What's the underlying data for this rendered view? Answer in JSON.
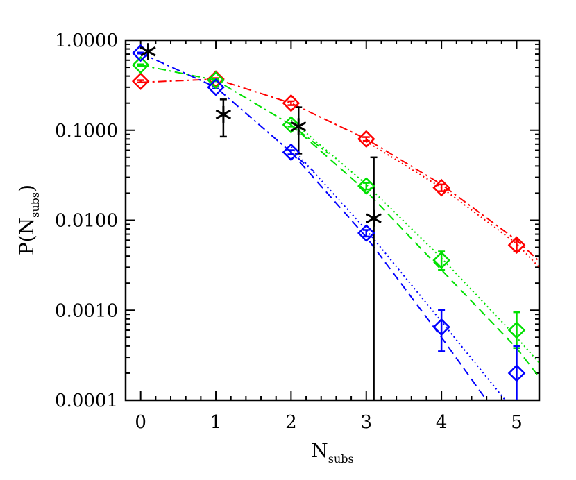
{
  "chart_data": {
    "type": "scatter",
    "title": "",
    "xlabel": {
      "main": "N",
      "sub": "subs"
    },
    "ylabel": {
      "pre": "P(N",
      "sub": "subs",
      "post": ")"
    },
    "xlim": [
      -0.2,
      5.3
    ],
    "ylim": [
      0.0001,
      1.0
    ],
    "yscale": "log",
    "xticks": [
      "0",
      "1",
      "2",
      "3",
      "4",
      "5"
    ],
    "yticks": [
      "0.0001",
      "0.0010",
      "0.0100",
      "0.1000",
      "1.0000"
    ],
    "grid": false,
    "series": [
      {
        "color": "#ff0000",
        "marker": "diamond",
        "x": [
          0,
          1,
          2,
          3,
          4,
          5
        ],
        "y": [
          0.35,
          0.37,
          0.2,
          0.08,
          0.023,
          0.0053
        ],
        "yerr_low": [
          0.34,
          0.36,
          0.19,
          0.076,
          0.021,
          0.0045
        ],
        "yerr_high": [
          0.36,
          0.38,
          0.21,
          0.084,
          0.025,
          0.0061
        ],
        "fit_dashdot": [
          [
            0,
            0.34
          ],
          [
            1,
            0.37
          ],
          [
            2,
            0.2
          ],
          [
            3,
            0.08
          ],
          [
            4,
            0.025
          ],
          [
            5,
            0.006
          ],
          [
            5.3,
            0.0035
          ]
        ],
        "fit_dotted": [
          [
            3,
            0.075
          ],
          [
            4,
            0.023
          ],
          [
            5,
            0.0055
          ],
          [
            5.3,
            0.003
          ]
        ]
      },
      {
        "color": "#00e000",
        "marker": "diamond",
        "x": [
          0,
          1,
          2,
          3,
          4,
          5
        ],
        "y": [
          0.53,
          0.36,
          0.115,
          0.024,
          0.0036,
          0.0006
        ],
        "yerr_low": [
          0.52,
          0.35,
          0.11,
          0.022,
          0.0028,
          0.00038
        ],
        "yerr_high": [
          0.54,
          0.37,
          0.12,
          0.026,
          0.0045,
          0.00095
        ],
        "fit_dashdot": [
          [
            0,
            0.53
          ],
          [
            1,
            0.36
          ],
          [
            2,
            0.115
          ],
          [
            2.5,
            0.055
          ]
        ],
        "fit_dotted": [
          [
            2,
            0.13
          ],
          [
            3,
            0.025
          ],
          [
            4,
            0.0038
          ],
          [
            5,
            0.0005
          ],
          [
            5.3,
            0.00026
          ]
        ],
        "fit_dashed": [
          [
            2,
            0.115
          ],
          [
            3,
            0.021
          ],
          [
            4,
            0.0028
          ],
          [
            5,
            0.00038
          ],
          [
            5.3,
            0.00018
          ]
        ]
      },
      {
        "color": "#0000ff",
        "marker": "diamond",
        "x": [
          0,
          1,
          2,
          3,
          4,
          5
        ],
        "y": [
          0.72,
          0.3,
          0.057,
          0.0072,
          0.00065,
          0.0002
        ],
        "yerr_low": [
          0.71,
          0.29,
          0.054,
          0.0066,
          0.00035,
          0.0001
        ],
        "yerr_high": [
          0.73,
          0.31,
          0.06,
          0.0078,
          0.001,
          0.0004
        ],
        "fit_dashdot": [
          [
            0,
            0.72
          ],
          [
            1,
            0.3
          ],
          [
            2,
            0.057
          ],
          [
            2.3,
            0.035
          ]
        ],
        "fit_dotted": [
          [
            2,
            0.065
          ],
          [
            3,
            0.0078
          ],
          [
            4,
            0.00075
          ],
          [
            4.85,
            0.0001
          ]
        ],
        "fit_dashed": [
          [
            2,
            0.057
          ],
          [
            3,
            0.0065
          ],
          [
            4,
            0.0005
          ],
          [
            4.6,
            0.0001
          ]
        ]
      },
      {
        "color": "#000000",
        "marker": "asterisk",
        "x": [
          0.1,
          1.1,
          2.1,
          3.1
        ],
        "y": [
          0.75,
          0.15,
          0.11,
          0.0105
        ],
        "yerr_low": [
          0.75,
          0.085,
          0.055,
          0.0001
        ],
        "yerr_high": [
          0.75,
          0.22,
          0.18,
          0.05
        ]
      }
    ]
  }
}
